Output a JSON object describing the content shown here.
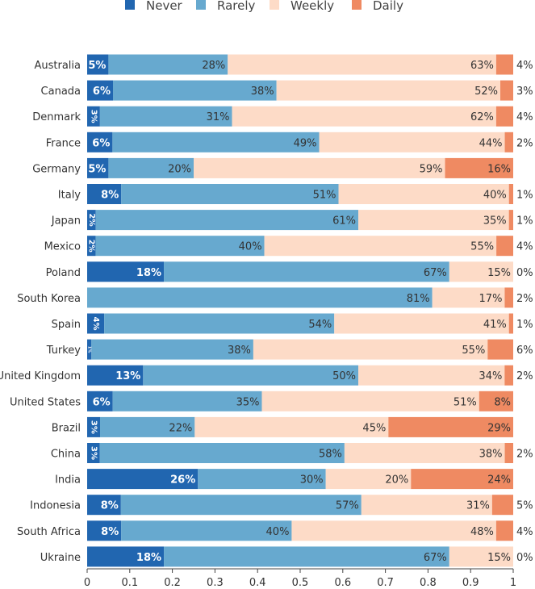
{
  "colors": {
    "never": "#2166b0",
    "rarely": "#67a9cf",
    "weekly": "#fddbc7",
    "daily": "#ef8a62"
  },
  "chart_data": {
    "type": "bar",
    "orientation": "horizontal",
    "stacked": true,
    "normalized": true,
    "categories": [
      "Australia",
      "Canada",
      "Denmark",
      "France",
      "Germany",
      "Italy",
      "Japan",
      "Mexico",
      "Poland",
      "South Korea",
      "Spain",
      "Turkey",
      "United Kingdom",
      "United States",
      "Brazil",
      "China",
      "India",
      "Indonesia",
      "South Africa",
      "Ukraine"
    ],
    "series": [
      {
        "name": "Never",
        "values": [
          5,
          6,
          3,
          6,
          5,
          8,
          2,
          2,
          18,
          0,
          4,
          1,
          13,
          6,
          3,
          3,
          26,
          8,
          8,
          18
        ]
      },
      {
        "name": "Rarely",
        "values": [
          28,
          38,
          31,
          49,
          20,
          51,
          61,
          40,
          67,
          81,
          54,
          38,
          50,
          35,
          22,
          58,
          30,
          57,
          40,
          67
        ]
      },
      {
        "name": "Weekly",
        "values": [
          63,
          52,
          62,
          44,
          59,
          40,
          35,
          55,
          15,
          17,
          41,
          55,
          34,
          51,
          45,
          38,
          20,
          31,
          48,
          15
        ]
      },
      {
        "name": "Daily",
        "values": [
          4,
          3,
          4,
          2,
          16,
          1,
          1,
          4,
          0,
          2,
          1,
          6,
          2,
          8,
          29,
          2,
          24,
          5,
          4,
          0
        ]
      }
    ],
    "xlim": [
      0,
      1
    ],
    "xticks": [
      "0",
      "0.1",
      "0.2",
      "0.3",
      "0.4",
      "0.5",
      "0.6",
      "0.7",
      "0.8",
      "0.9",
      "1"
    ],
    "legend_position": "top-center",
    "grid": false,
    "title": "",
    "xlabel": "",
    "ylabel": ""
  }
}
